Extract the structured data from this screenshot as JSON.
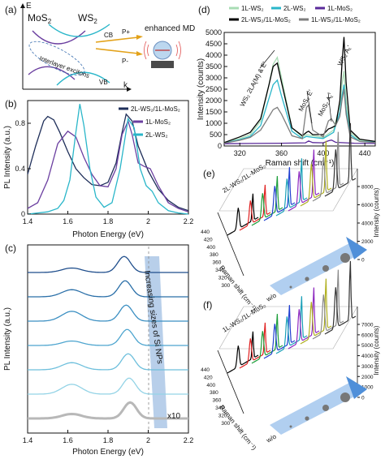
{
  "panel_a": {
    "label": "(a)",
    "axis_e": "E",
    "axis_k": "k",
    "mos2": "MoS",
    "mos2_sub": "2",
    "ws2": "WS",
    "ws2_sub": "2",
    "cb": "CB",
    "vb": "VB",
    "interlayer": "Interlayer excitons",
    "p_plus": "P+",
    "p_minus": "P-",
    "enhanced": "enhanced MD"
  },
  "panel_b": {
    "label": "(b)",
    "ylabel": "PL Intensity (a.u.)",
    "xlabel": "Photon Energy (eV)",
    "legend": [
      "2L-WS₂/1L-MoS₂",
      "1L-MoS₂",
      "2L-WS₂"
    ]
  },
  "panel_c": {
    "label": "(c)",
    "ylabel": "PL Intensity (a.u.)",
    "xlabel": "Photon Energy (eV)",
    "annotation": "Increasing sizes of Si NPs",
    "x10": "x10"
  },
  "panel_d": {
    "label": "(d)",
    "ylabel": "Intensity (counts)",
    "xlabel": "Raman shift (cm⁻¹)",
    "legend": [
      "1L-WS₂",
      "2L-WS₂",
      "1L-MoS₂",
      "2L-WS₂/1L-MoS₂",
      "1L-WS₂/1L-MoS₂"
    ],
    "ann1": "WS₂ 2LA(M) & E'",
    "ann2": "MoS₂ E'",
    "ann3": "MoS₂ A₁'",
    "ann4": "WS₂ A₁'"
  },
  "panel_e": {
    "label": "(e)",
    "title": "2L-WS₂/1L-MoS₂",
    "zlabel": "Intensity (counts)",
    "xlabel": "Raman shift (cm⁻¹)",
    "wo": "w/o",
    "zticks": [
      "0",
      "2000",
      "4000",
      "6000",
      "8000"
    ],
    "xticks": [
      "440",
      "420",
      "400",
      "380",
      "360",
      "340",
      "320",
      "300"
    ]
  },
  "panel_f": {
    "label": "(f)",
    "title": "1L-WS₂/1L-MoS₂",
    "zlabel": "Intensity (counts)",
    "xlabel": "Raman shift (cm⁻¹)",
    "wo": "w/o",
    "zticks": [
      "0",
      "1000",
      "2000",
      "3000",
      "4000",
      "5000",
      "6000",
      "7000"
    ],
    "xticks": [
      "440",
      "420",
      "400",
      "380",
      "360",
      "340",
      "320",
      "300"
    ]
  },
  "chart_data": [
    {
      "type": "line",
      "panel": "b",
      "xlabel": "Photon Energy (eV)",
      "ylabel": "PL Intensity (a.u.)",
      "xlim": [
        1.4,
        2.2
      ],
      "ylim": [
        0,
        1.0
      ],
      "xticks": [
        1.4,
        1.6,
        1.8,
        2.0,
        2.2
      ],
      "yticks": [
        0,
        0.4,
        0.8
      ],
      "series": [
        {
          "name": "2L-WS₂/1L-MoS₂",
          "color": "#1f2f5a",
          "x": [
            1.4,
            1.44,
            1.48,
            1.5,
            1.53,
            1.56,
            1.6,
            1.64,
            1.68,
            1.72,
            1.76,
            1.8,
            1.84,
            1.87,
            1.89,
            1.92,
            1.95,
            2.0,
            2.05,
            2.1,
            2.15,
            2.2
          ],
          "y": [
            0.35,
            0.6,
            0.82,
            0.86,
            0.83,
            0.72,
            0.55,
            0.4,
            0.32,
            0.26,
            0.25,
            0.28,
            0.45,
            0.72,
            0.88,
            0.82,
            0.6,
            0.38,
            0.22,
            0.12,
            0.06,
            0.03
          ]
        },
        {
          "name": "1L-MoS₂",
          "color": "#6b3fa0",
          "x": [
            1.4,
            1.45,
            1.5,
            1.55,
            1.6,
            1.64,
            1.68,
            1.72,
            1.76,
            1.8,
            1.84,
            1.87,
            1.9,
            1.92,
            1.95,
            1.98,
            2.01,
            2.05,
            2.1,
            2.15,
            2.2
          ],
          "y": [
            0.05,
            0.1,
            0.3,
            0.62,
            0.73,
            0.68,
            0.5,
            0.35,
            0.25,
            0.24,
            0.4,
            0.7,
            0.82,
            0.7,
            0.45,
            0.42,
            0.4,
            0.25,
            0.1,
            0.05,
            0.02
          ]
        },
        {
          "name": "2L-WS₂",
          "color": "#29b6c9",
          "x": [
            1.4,
            1.45,
            1.5,
            1.55,
            1.58,
            1.61,
            1.64,
            1.66,
            1.68,
            1.71,
            1.74,
            1.78,
            1.82,
            1.86,
            1.9,
            1.93,
            1.96,
            1.99,
            2.02,
            2.05,
            2.1,
            2.15,
            2.2
          ],
          "y": [
            0.0,
            0.01,
            0.02,
            0.05,
            0.12,
            0.3,
            0.72,
            0.97,
            0.78,
            0.4,
            0.15,
            0.06,
            0.1,
            0.4,
            0.84,
            0.76,
            0.4,
            0.25,
            0.2,
            0.1,
            0.03,
            0.01,
            0.0
          ]
        }
      ]
    },
    {
      "type": "line",
      "panel": "c",
      "xlabel": "Photon Energy (eV)",
      "ylabel": "PL Intensity (a.u.)",
      "xlim": [
        1.4,
        2.2
      ],
      "xticks": [
        1.4,
        1.6,
        1.8,
        2.0,
        2.2
      ],
      "dashed_x": 1.9,
      "series_offsets": [
        6,
        5,
        4,
        3,
        2,
        1,
        0
      ],
      "series_colors": [
        "#1f4e8c",
        "#2a6fa8",
        "#3b8fc2",
        "#4ea5cf",
        "#6dbfdc",
        "#93d3e6",
        "#b8b8b8"
      ]
    },
    {
      "type": "line",
      "panel": "d",
      "xlabel": "Raman shift (cm⁻¹)",
      "ylabel": "Intensity (counts)",
      "xlim": [
        305,
        450
      ],
      "ylim": [
        0,
        5000
      ],
      "xticks": [
        320,
        360,
        400,
        440
      ],
      "yticks": [
        0,
        500,
        1000,
        1500,
        2000,
        2500,
        3000,
        3500,
        4000,
        4500,
        5000
      ],
      "series": [
        {
          "name": "1L-WS₂",
          "color": "#a8dcb4",
          "x": [
            305,
            320,
            330,
            340,
            348,
            352,
            356,
            360,
            370,
            380,
            384,
            390,
            400,
            410,
            416,
            418,
            420,
            422,
            426,
            435,
            450
          ],
          "y": [
            150,
            320,
            500,
            1100,
            2700,
            3600,
            3900,
            3000,
            800,
            400,
            500,
            450,
            380,
            700,
            1800,
            2700,
            3300,
            2000,
            600,
            250,
            200
          ]
        },
        {
          "name": "2L-WS₂",
          "color": "#29b6c9",
          "x": [
            305,
            320,
            330,
            340,
            348,
            352,
            356,
            360,
            370,
            380,
            384,
            390,
            400,
            410,
            416,
            418,
            420,
            422,
            426,
            435,
            450
          ],
          "y": [
            130,
            280,
            420,
            900,
            2100,
            2700,
            2900,
            2200,
            650,
            330,
            420,
            380,
            330,
            600,
            1500,
            2200,
            2700,
            1600,
            500,
            200,
            180
          ]
        },
        {
          "name": "1L-MoS₂",
          "color": "#5a2a9a",
          "x": [
            305,
            330,
            360,
            383,
            386,
            390,
            400,
            405,
            408,
            412,
            430,
            450
          ],
          "y": [
            100,
            110,
            120,
            140,
            220,
            150,
            140,
            230,
            260,
            160,
            120,
            110
          ]
        },
        {
          "name": "2L-WS₂/1L-MoS₂",
          "color": "#000000",
          "x": [
            305,
            320,
            330,
            340,
            348,
            352,
            356,
            360,
            370,
            380,
            384,
            386,
            390,
            400,
            405,
            408,
            412,
            416,
            418,
            420,
            422,
            426,
            435,
            450
          ],
          "y": [
            150,
            400,
            600,
            1200,
            2700,
            3500,
            3650,
            2800,
            800,
            450,
            600,
            650,
            500,
            500,
            750,
            800,
            900,
            2000,
            3600,
            4800,
            2800,
            700,
            300,
            200
          ]
        },
        {
          "name": "1L-WS₂/1L-MoS₂",
          "color": "#7d7d7d",
          "x": [
            305,
            320,
            330,
            340,
            348,
            352,
            356,
            360,
            370,
            380,
            384,
            386,
            390,
            400,
            405,
            408,
            412,
            416,
            418,
            420,
            422,
            426,
            435,
            450
          ],
          "y": [
            120,
            250,
            380,
            700,
            1300,
            1600,
            1700,
            1400,
            450,
            320,
            1700,
            1800,
            700,
            400,
            1100,
            1200,
            900,
            1300,
            2000,
            2500,
            1400,
            400,
            200,
            150
          ]
        }
      ]
    },
    {
      "type": "line",
      "panel": "e",
      "xlabel": "Raman shift (cm⁻¹)",
      "ylabel": "Intensity (counts)",
      "n_spectra": 9,
      "spectra_colors": [
        "#000000",
        "#e02020",
        "#1b9e3a",
        "#1f3fd0",
        "#1aa0b8",
        "#8e2ac0",
        "#b0b020",
        "#8a8a8a",
        "#333333"
      ]
    },
    {
      "type": "line",
      "panel": "f",
      "xlabel": "Raman shift (cm⁻¹)",
      "ylabel": "Intensity (counts)",
      "n_spectra": 9,
      "spectra_colors": [
        "#000000",
        "#e02020",
        "#1b9e3a",
        "#1f3fd0",
        "#1aa0b8",
        "#8e2ac0",
        "#b0b020",
        "#8a8a8a",
        "#333333"
      ]
    }
  ]
}
